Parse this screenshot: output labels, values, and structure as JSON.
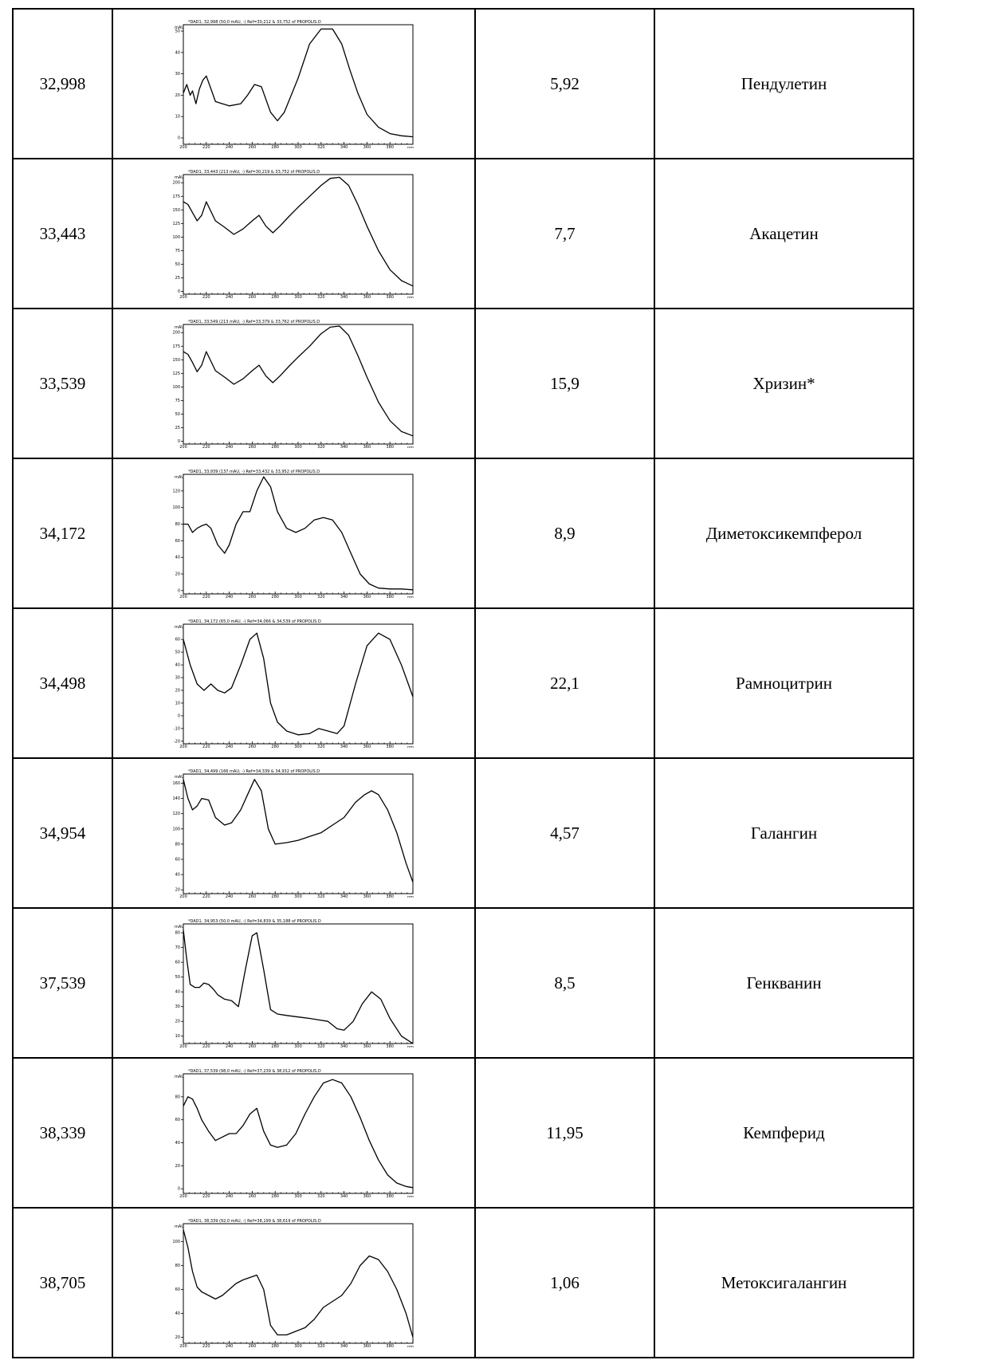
{
  "header_note": "",
  "rows": [
    {
      "rt": "32,998",
      "content": "5,92",
      "name": "Пендулетин",
      "spectrum": {
        "caption": "*DAD1, 32,998 (50,0 mAU, -) Ref=30,212 & 33,752 of PROPOLIS.D",
        "y_unit": "mAU",
        "x_unit": "nm",
        "xlim": [
          200,
          400
        ],
        "y_ticks": [
          0,
          10,
          20,
          30,
          40,
          50
        ],
        "ylim": [
          -3,
          53
        ],
        "x": [
          200,
          203,
          206,
          208,
          211,
          214,
          217,
          220,
          224,
          228,
          234,
          240,
          250,
          256,
          262,
          268,
          276,
          282,
          288,
          300,
          310,
          320,
          330,
          338,
          345,
          352,
          360,
          370,
          380,
          390,
          400
        ],
        "y": [
          21,
          25,
          20,
          22,
          16,
          23,
          27,
          29,
          23,
          17,
          16,
          15,
          16,
          20,
          25,
          24,
          12,
          8,
          12,
          28,
          44,
          51,
          51,
          44,
          32,
          21,
          11,
          5,
          2,
          1,
          0.5
        ]
      }
    },
    {
      "rt": "33,443",
      "content": "7,7",
      "name": "Акацетин",
      "spectrum": {
        "caption": "*DAD1, 33,443 (213 mAU, -) Ref=30,219 & 33,752 of PROPOLIS.D",
        "y_unit": "mAU",
        "x_unit": "nm",
        "xlim": [
          200,
          400
        ],
        "y_ticks": [
          0,
          25,
          50,
          75,
          100,
          125,
          150,
          175,
          200
        ],
        "ylim": [
          -5,
          215
        ],
        "x": [
          200,
          204,
          208,
          212,
          216,
          220,
          228,
          236,
          244,
          252,
          260,
          266,
          272,
          278,
          284,
          292,
          300,
          310,
          320,
          328,
          336,
          344,
          352,
          360,
          370,
          380,
          390,
          400
        ],
        "y": [
          165,
          160,
          145,
          130,
          140,
          165,
          130,
          118,
          105,
          115,
          130,
          140,
          120,
          108,
          120,
          138,
          155,
          175,
          195,
          208,
          210,
          195,
          160,
          120,
          75,
          40,
          20,
          10
        ]
      }
    },
    {
      "rt": "33,539",
      "content": "15,9",
      "name": "Хризин*",
      "spectrum": {
        "caption": "*DAD1, 33,549 (213 mAU, -) Ref=33,379 & 33,762 of PROPOLIS.D",
        "y_unit": "mAU",
        "x_unit": "nm",
        "xlim": [
          200,
          400
        ],
        "y_ticks": [
          0,
          25,
          50,
          75,
          100,
          125,
          150,
          175,
          200
        ],
        "ylim": [
          -5,
          215
        ],
        "x": [
          200,
          204,
          208,
          212,
          216,
          220,
          228,
          236,
          244,
          252,
          260,
          266,
          272,
          278,
          284,
          292,
          300,
          310,
          320,
          328,
          336,
          344,
          352,
          360,
          370,
          380,
          390,
          400
        ],
        "y": [
          165,
          160,
          145,
          128,
          140,
          165,
          130,
          118,
          105,
          115,
          130,
          140,
          120,
          108,
          120,
          138,
          155,
          175,
          198,
          210,
          212,
          195,
          158,
          118,
          72,
          38,
          18,
          10
        ]
      }
    },
    {
      "rt": "34,172",
      "content": "8,9",
      "name": "Диметоксикемпферол",
      "spectrum": {
        "caption": "*DAD1, 33,939 (137 mAU, -) Ref=33,432 & 33,952 of PROPOLIS.D",
        "y_unit": "mAU",
        "x_unit": "nm",
        "xlim": [
          200,
          400
        ],
        "y_ticks": [
          0,
          20,
          40,
          60,
          80,
          100,
          120
        ],
        "ylim": [
          -4,
          140
        ],
        "x": [
          200,
          204,
          208,
          212,
          216,
          220,
          224,
          230,
          236,
          240,
          246,
          252,
          258,
          264,
          270,
          276,
          282,
          290,
          298,
          306,
          314,
          322,
          330,
          338,
          346,
          354,
          362,
          370,
          380,
          390,
          400
        ],
        "y": [
          80,
          80,
          70,
          75,
          78,
          80,
          75,
          55,
          45,
          55,
          80,
          95,
          95,
          120,
          137,
          125,
          95,
          75,
          70,
          75,
          85,
          88,
          85,
          70,
          45,
          20,
          8,
          3,
          2,
          2,
          1
        ]
      }
    },
    {
      "rt": "34,498",
      "content": "22,1",
      "name": "Рамноцитрин",
      "spectrum": {
        "caption": "*DAD1, 34,172 (65,0 mAU, -) Ref=34,066 & 34,539 of PROPOLIS.D",
        "y_unit": "mAU",
        "x_unit": "nm",
        "xlim": [
          200,
          400
        ],
        "y_ticks": [
          -20,
          -10,
          0,
          10,
          20,
          30,
          40,
          50,
          60
        ],
        "ylim": [
          -22,
          72
        ],
        "x": [
          200,
          206,
          212,
          218,
          224,
          230,
          236,
          242,
          250,
          258,
          264,
          270,
          276,
          282,
          290,
          300,
          310,
          318,
          326,
          334,
          340,
          350,
          360,
          370,
          380,
          390,
          400
        ],
        "y": [
          60,
          40,
          25,
          20,
          25,
          20,
          18,
          22,
          40,
          60,
          65,
          45,
          10,
          -5,
          -12,
          -15,
          -14,
          -10,
          -12,
          -14,
          -8,
          25,
          55,
          65,
          60,
          40,
          15
        ]
      }
    },
    {
      "rt": "34,954",
      "content": "4,57",
      "name": "Галангин",
      "spectrum": {
        "caption": "*DAD1, 34,499 (166 mAU, -) Ref=34,339 & 34,932 of PROPOLIS.D",
        "y_unit": "mAU",
        "x_unit": "nm",
        "xlim": [
          200,
          400
        ],
        "y_ticks": [
          20,
          40,
          60,
          80,
          100,
          120,
          140,
          160
        ],
        "ylim": [
          15,
          172
        ],
        "x": [
          200,
          204,
          208,
          212,
          216,
          222,
          228,
          236,
          242,
          250,
          256,
          262,
          268,
          274,
          280,
          290,
          300,
          310,
          320,
          330,
          340,
          350,
          358,
          364,
          370,
          378,
          386,
          394,
          400
        ],
        "y": [
          165,
          140,
          125,
          130,
          140,
          138,
          115,
          105,
          108,
          125,
          145,
          165,
          150,
          100,
          80,
          82,
          85,
          90,
          95,
          105,
          115,
          135,
          145,
          150,
          145,
          125,
          95,
          55,
          30
        ]
      }
    },
    {
      "rt": "37,539",
      "content": "8,5",
      "name": "Генкванин",
      "spectrum": {
        "caption": "*DAD1, 34,953 (50,0 mAU, -) Ref=34,839 & 35,188 of PROPOLIS.D",
        "y_unit": "mAU",
        "x_unit": "nm",
        "xlim": [
          200,
          400
        ],
        "y_ticks": [
          10,
          20,
          30,
          40,
          50,
          60,
          70,
          80
        ],
        "ylim": [
          5,
          86
        ],
        "x": [
          200,
          203,
          206,
          210,
          214,
          218,
          222,
          226,
          230,
          236,
          242,
          248,
          254,
          260,
          264,
          270,
          276,
          282,
          290,
          300,
          310,
          318,
          326,
          334,
          340,
          348,
          356,
          364,
          372,
          380,
          390,
          400
        ],
        "y": [
          82,
          62,
          45,
          43,
          43,
          46,
          45,
          42,
          38,
          35,
          34,
          30,
          55,
          78,
          80,
          55,
          28,
          25,
          24,
          23,
          22,
          21,
          20,
          15,
          14,
          20,
          32,
          40,
          35,
          22,
          10,
          5
        ]
      }
    },
    {
      "rt": "38,339",
      "content": "11,95",
      "name": "Кемпферид",
      "spectrum": {
        "caption": "*DAD1, 37,539 (98,0 mAU, -) Ref=37,239 & 38,012 of PROPOLIS.D",
        "y_unit": "mAU",
        "x_unit": "nm",
        "xlim": [
          200,
          400
        ],
        "y_ticks": [
          0,
          20,
          40,
          60,
          80
        ],
        "ylim": [
          -4,
          100
        ],
        "x": [
          200,
          204,
          208,
          212,
          216,
          222,
          228,
          234,
          240,
          246,
          252,
          258,
          264,
          270,
          276,
          282,
          290,
          298,
          306,
          314,
          322,
          330,
          338,
          346,
          354,
          362,
          370,
          378,
          386,
          394,
          400
        ],
        "y": [
          72,
          80,
          78,
          70,
          60,
          50,
          42,
          45,
          48,
          48,
          55,
          65,
          70,
          50,
          38,
          36,
          38,
          48,
          65,
          80,
          92,
          95,
          92,
          80,
          62,
          42,
          25,
          12,
          5,
          2,
          1
        ]
      }
    },
    {
      "rt": "38,705",
      "content": "1,06",
      "name": "Метоксигалангин",
      "spectrum": {
        "caption": "*DAD1, 38,339 (92,0 mAU, -) Ref=38,199 & 38,619 of PROPOLIS.D",
        "y_unit": "mAU",
        "x_unit": "nm",
        "xlim": [
          200,
          400
        ],
        "y_ticks": [
          20,
          40,
          60,
          80,
          100
        ],
        "ylim": [
          15,
          115
        ],
        "x": [
          200,
          204,
          208,
          212,
          216,
          222,
          228,
          234,
          240,
          246,
          252,
          258,
          264,
          270,
          276,
          282,
          290,
          298,
          306,
          314,
          322,
          330,
          338,
          346,
          354,
          362,
          370,
          378,
          386,
          394,
          400
        ],
        "y": [
          110,
          95,
          75,
          62,
          58,
          55,
          52,
          55,
          60,
          65,
          68,
          70,
          72,
          60,
          30,
          22,
          22,
          25,
          28,
          35,
          45,
          50,
          55,
          65,
          80,
          88,
          85,
          75,
          60,
          40,
          20
        ]
      }
    }
  ]
}
